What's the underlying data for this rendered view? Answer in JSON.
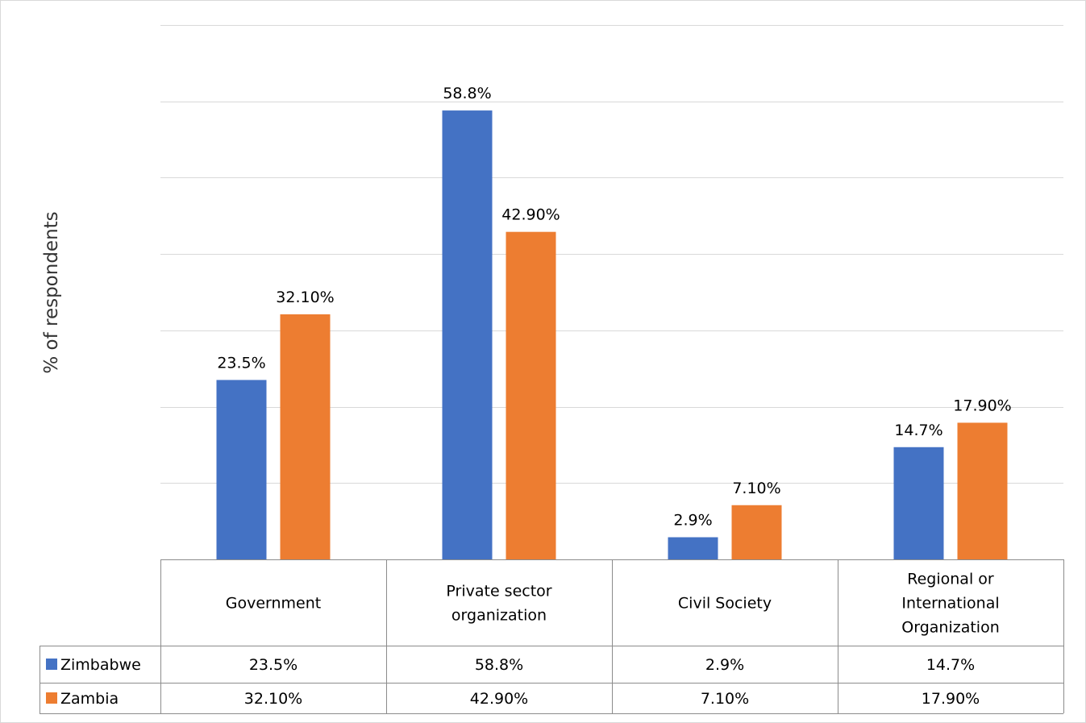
{
  "chart_data": {
    "type": "bar",
    "title": "",
    "ylabel": "% of respondents",
    "xlabel": "",
    "ylim": [
      0,
      70
    ],
    "grid": true,
    "legend": "data-table",
    "categories": [
      [
        "Government"
      ],
      [
        "Private sector",
        "organization"
      ],
      [
        "Civil Society"
      ],
      [
        "Regional or",
        "International",
        "Organization"
      ]
    ],
    "series": [
      {
        "name": "Zimbabwe",
        "color": "#4472C4",
        "values": [
          23.5,
          58.8,
          2.9,
          14.7
        ],
        "labels": [
          "23.5%",
          "58.8%",
          "2.9%",
          "14.7%"
        ]
      },
      {
        "name": "Zambia",
        "color": "#ED7D31",
        "values": [
          32.1,
          42.9,
          7.1,
          17.9
        ],
        "labels": [
          "32.10%",
          "42.90%",
          "7.10%",
          "17.90%"
        ]
      }
    ]
  }
}
